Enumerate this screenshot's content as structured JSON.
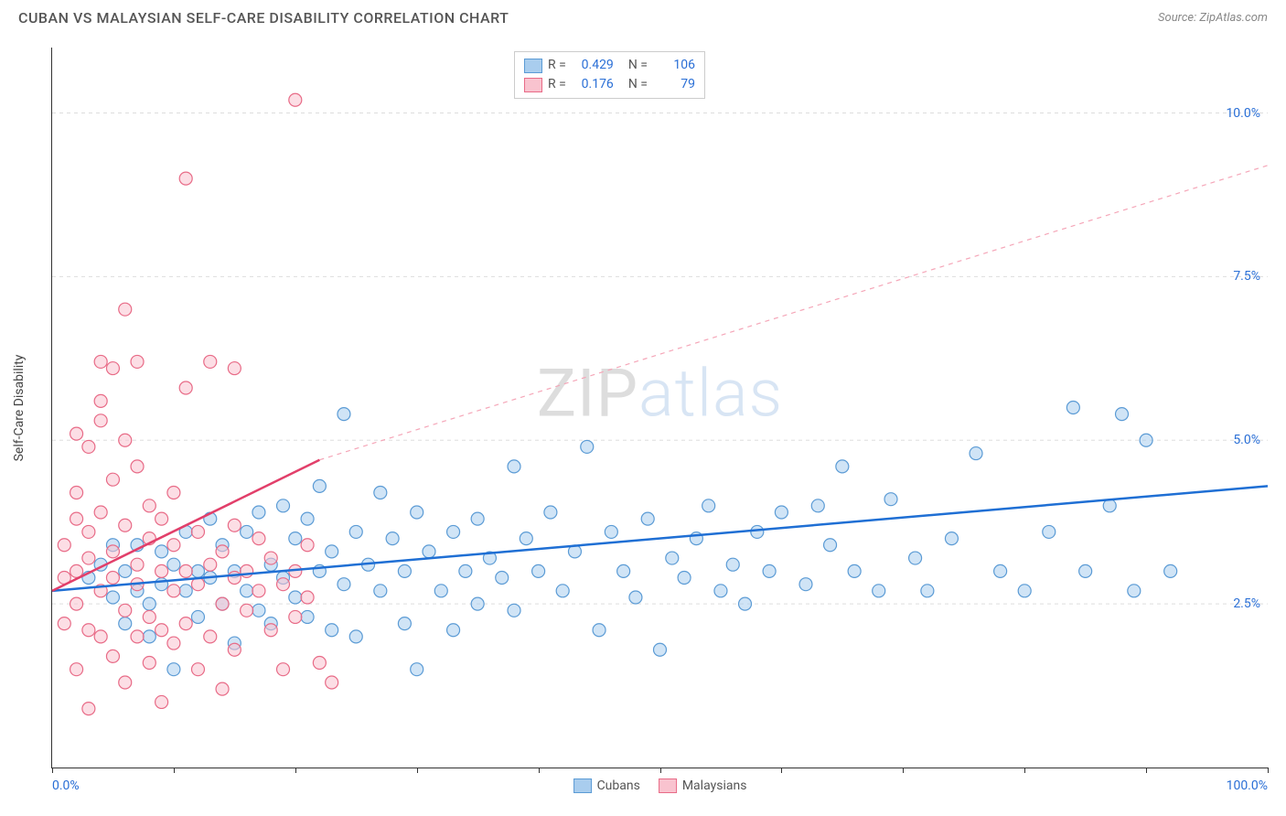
{
  "title": "CUBAN VS MALAYSIAN SELF-CARE DISABILITY CORRELATION CHART",
  "source_label": "Source: ZipAtlas.com",
  "y_axis_title": "Self-Care Disability",
  "watermark": {
    "part1": "ZIP",
    "part2": "atlas"
  },
  "chart": {
    "type": "scatter",
    "xlim": [
      0,
      100
    ],
    "ylim": [
      0,
      11
    ],
    "x_tick_labels": {
      "min": "0.0%",
      "max": "100.0%"
    },
    "x_ticks": [
      0,
      10,
      20,
      30,
      40,
      50,
      60,
      70,
      80,
      90,
      100
    ],
    "y_gridlines": [
      {
        "v": 2.5,
        "label": "2.5%"
      },
      {
        "v": 5.0,
        "label": "5.0%"
      },
      {
        "v": 7.5,
        "label": "7.5%"
      },
      {
        "v": 10.0,
        "label": "10.0%"
      }
    ],
    "background_color": "#ffffff",
    "grid_color": "#dddddd",
    "axis_color": "#333333",
    "tick_label_color": "#2a6fd6",
    "point_radius": 7,
    "point_stroke_width": 1.2,
    "series": [
      {
        "name": "Cubans",
        "fill": "#a9cdee",
        "stroke": "#5b9bd5",
        "fill_opacity": 0.55,
        "trend": {
          "x1": 0,
          "y1": 2.7,
          "x2": 100,
          "y2": 4.3,
          "color": "#1f6fd4",
          "width": 2.5,
          "dash": "none"
        },
        "trend_ext": null,
        "points": [
          [
            3,
            2.9
          ],
          [
            4,
            3.1
          ],
          [
            5,
            2.6
          ],
          [
            5,
            3.4
          ],
          [
            6,
            2.2
          ],
          [
            6,
            3.0
          ],
          [
            7,
            2.7
          ],
          [
            7,
            3.4
          ],
          [
            8,
            2.0
          ],
          [
            8,
            2.5
          ],
          [
            9,
            2.8
          ],
          [
            9,
            3.3
          ],
          [
            10,
            1.5
          ],
          [
            10,
            3.1
          ],
          [
            11,
            2.7
          ],
          [
            11,
            3.6
          ],
          [
            12,
            2.3
          ],
          [
            12,
            3.0
          ],
          [
            13,
            2.9
          ],
          [
            13,
            3.8
          ],
          [
            14,
            2.5
          ],
          [
            14,
            3.4
          ],
          [
            15,
            1.9
          ],
          [
            15,
            3.0
          ],
          [
            16,
            2.7
          ],
          [
            16,
            3.6
          ],
          [
            17,
            2.4
          ],
          [
            17,
            3.9
          ],
          [
            18,
            2.2
          ],
          [
            18,
            3.1
          ],
          [
            19,
            2.9
          ],
          [
            19,
            4.0
          ],
          [
            20,
            2.6
          ],
          [
            20,
            3.5
          ],
          [
            21,
            3.8
          ],
          [
            21,
            2.3
          ],
          [
            22,
            3.0
          ],
          [
            22,
            4.3
          ],
          [
            23,
            2.1
          ],
          [
            23,
            3.3
          ],
          [
            24,
            5.4
          ],
          [
            24,
            2.8
          ],
          [
            25,
            3.6
          ],
          [
            25,
            2.0
          ],
          [
            26,
            3.1
          ],
          [
            27,
            4.2
          ],
          [
            27,
            2.7
          ],
          [
            28,
            3.5
          ],
          [
            29,
            3.0
          ],
          [
            29,
            2.2
          ],
          [
            30,
            3.9
          ],
          [
            30,
            1.5
          ],
          [
            31,
            3.3
          ],
          [
            32,
            2.7
          ],
          [
            33,
            3.6
          ],
          [
            33,
            2.1
          ],
          [
            34,
            3.0
          ],
          [
            35,
            3.8
          ],
          [
            35,
            2.5
          ],
          [
            36,
            3.2
          ],
          [
            37,
            2.9
          ],
          [
            38,
            4.6
          ],
          [
            38,
            2.4
          ],
          [
            39,
            3.5
          ],
          [
            40,
            3.0
          ],
          [
            41,
            3.9
          ],
          [
            42,
            2.7
          ],
          [
            43,
            3.3
          ],
          [
            44,
            4.9
          ],
          [
            45,
            2.1
          ],
          [
            46,
            3.6
          ],
          [
            47,
            3.0
          ],
          [
            48,
            2.6
          ],
          [
            49,
            3.8
          ],
          [
            50,
            1.8
          ],
          [
            51,
            3.2
          ],
          [
            52,
            2.9
          ],
          [
            53,
            3.5
          ],
          [
            54,
            4.0
          ],
          [
            55,
            2.7
          ],
          [
            56,
            3.1
          ],
          [
            57,
            2.5
          ],
          [
            58,
            3.6
          ],
          [
            59,
            3.0
          ],
          [
            60,
            3.9
          ],
          [
            62,
            2.8
          ],
          [
            64,
            3.4
          ],
          [
            65,
            4.6
          ],
          [
            66,
            3.0
          ],
          [
            68,
            2.7
          ],
          [
            69,
            4.1
          ],
          [
            71,
            3.2
          ],
          [
            72,
            2.7
          ],
          [
            74,
            3.5
          ],
          [
            76,
            4.8
          ],
          [
            78,
            3.0
          ],
          [
            80,
            2.7
          ],
          [
            82,
            3.6
          ],
          [
            84,
            5.5
          ],
          [
            85,
            3.0
          ],
          [
            87,
            4.0
          ],
          [
            89,
            2.7
          ],
          [
            90,
            5.0
          ],
          [
            92,
            3.0
          ],
          [
            88,
            5.4
          ],
          [
            63,
            4.0
          ]
        ]
      },
      {
        "name": "Malaysians",
        "fill": "#f9c3cf",
        "stroke": "#e86b87",
        "fill_opacity": 0.55,
        "trend": {
          "x1": 0,
          "y1": 2.7,
          "x2": 22,
          "y2": 4.7,
          "color": "#e23f6a",
          "width": 2.5,
          "dash": "none"
        },
        "trend_ext": {
          "x1": 22,
          "y1": 4.7,
          "x2": 100,
          "y2": 9.2,
          "color": "#f5a6b8",
          "width": 1.2,
          "dash": "5,5"
        },
        "points": [
          [
            1,
            2.9
          ],
          [
            1,
            3.4
          ],
          [
            1,
            2.2
          ],
          [
            2,
            3.0
          ],
          [
            2,
            3.8
          ],
          [
            2,
            1.5
          ],
          [
            2,
            4.2
          ],
          [
            2,
            2.5
          ],
          [
            3,
            3.6
          ],
          [
            3,
            2.1
          ],
          [
            3,
            4.9
          ],
          [
            3,
            3.2
          ],
          [
            3,
            0.9
          ],
          [
            4,
            2.7
          ],
          [
            4,
            3.9
          ],
          [
            4,
            5.3
          ],
          [
            4,
            2.0
          ],
          [
            4,
            6.2
          ],
          [
            5,
            3.3
          ],
          [
            5,
            1.7
          ],
          [
            5,
            4.4
          ],
          [
            5,
            2.9
          ],
          [
            5,
            6.1
          ],
          [
            6,
            3.7
          ],
          [
            6,
            2.4
          ],
          [
            6,
            5.0
          ],
          [
            6,
            1.3
          ],
          [
            6,
            7.0
          ],
          [
            7,
            3.1
          ],
          [
            7,
            2.0
          ],
          [
            7,
            4.6
          ],
          [
            7,
            2.8
          ],
          [
            7,
            6.2
          ],
          [
            8,
            3.5
          ],
          [
            8,
            1.6
          ],
          [
            8,
            2.3
          ],
          [
            8,
            4.0
          ],
          [
            9,
            3.0
          ],
          [
            9,
            2.1
          ],
          [
            9,
            3.8
          ],
          [
            9,
            1.0
          ],
          [
            10,
            2.7
          ],
          [
            10,
            3.4
          ],
          [
            10,
            1.9
          ],
          [
            10,
            4.2
          ],
          [
            11,
            3.0
          ],
          [
            11,
            2.2
          ],
          [
            11,
            9.0
          ],
          [
            12,
            2.8
          ],
          [
            12,
            3.6
          ],
          [
            12,
            1.5
          ],
          [
            13,
            3.1
          ],
          [
            13,
            2.0
          ],
          [
            13,
            6.2
          ],
          [
            14,
            2.5
          ],
          [
            14,
            3.3
          ],
          [
            14,
            1.2
          ],
          [
            15,
            2.9
          ],
          [
            15,
            3.7
          ],
          [
            15,
            1.8
          ],
          [
            16,
            2.4
          ],
          [
            16,
            3.0
          ],
          [
            17,
            2.7
          ],
          [
            17,
            3.5
          ],
          [
            18,
            2.1
          ],
          [
            18,
            3.2
          ],
          [
            19,
            2.8
          ],
          [
            19,
            1.5
          ],
          [
            20,
            3.0
          ],
          [
            20,
            2.3
          ],
          [
            21,
            2.6
          ],
          [
            21,
            3.4
          ],
          [
            22,
            1.6
          ],
          [
            23,
            1.3
          ],
          [
            15,
            6.1
          ],
          [
            11,
            5.8
          ],
          [
            4,
            5.6
          ],
          [
            2,
            5.1
          ],
          [
            20,
            10.2
          ]
        ]
      }
    ]
  },
  "legend_box": {
    "rows": [
      {
        "swatch_fill": "#a9cdee",
        "swatch_stroke": "#5b9bd5",
        "r_label": "R =",
        "r_val": "0.429",
        "n_label": "N =",
        "n_val": "106"
      },
      {
        "swatch_fill": "#f9c3cf",
        "swatch_stroke": "#e86b87",
        "r_label": "R =",
        "r_val": "0.176",
        "n_label": "N =",
        "n_val": "79"
      }
    ]
  },
  "bottom_legend": [
    {
      "swatch_fill": "#a9cdee",
      "swatch_stroke": "#5b9bd5",
      "label": "Cubans"
    },
    {
      "swatch_fill": "#f9c3cf",
      "swatch_stroke": "#e86b87",
      "label": "Malaysians"
    }
  ]
}
